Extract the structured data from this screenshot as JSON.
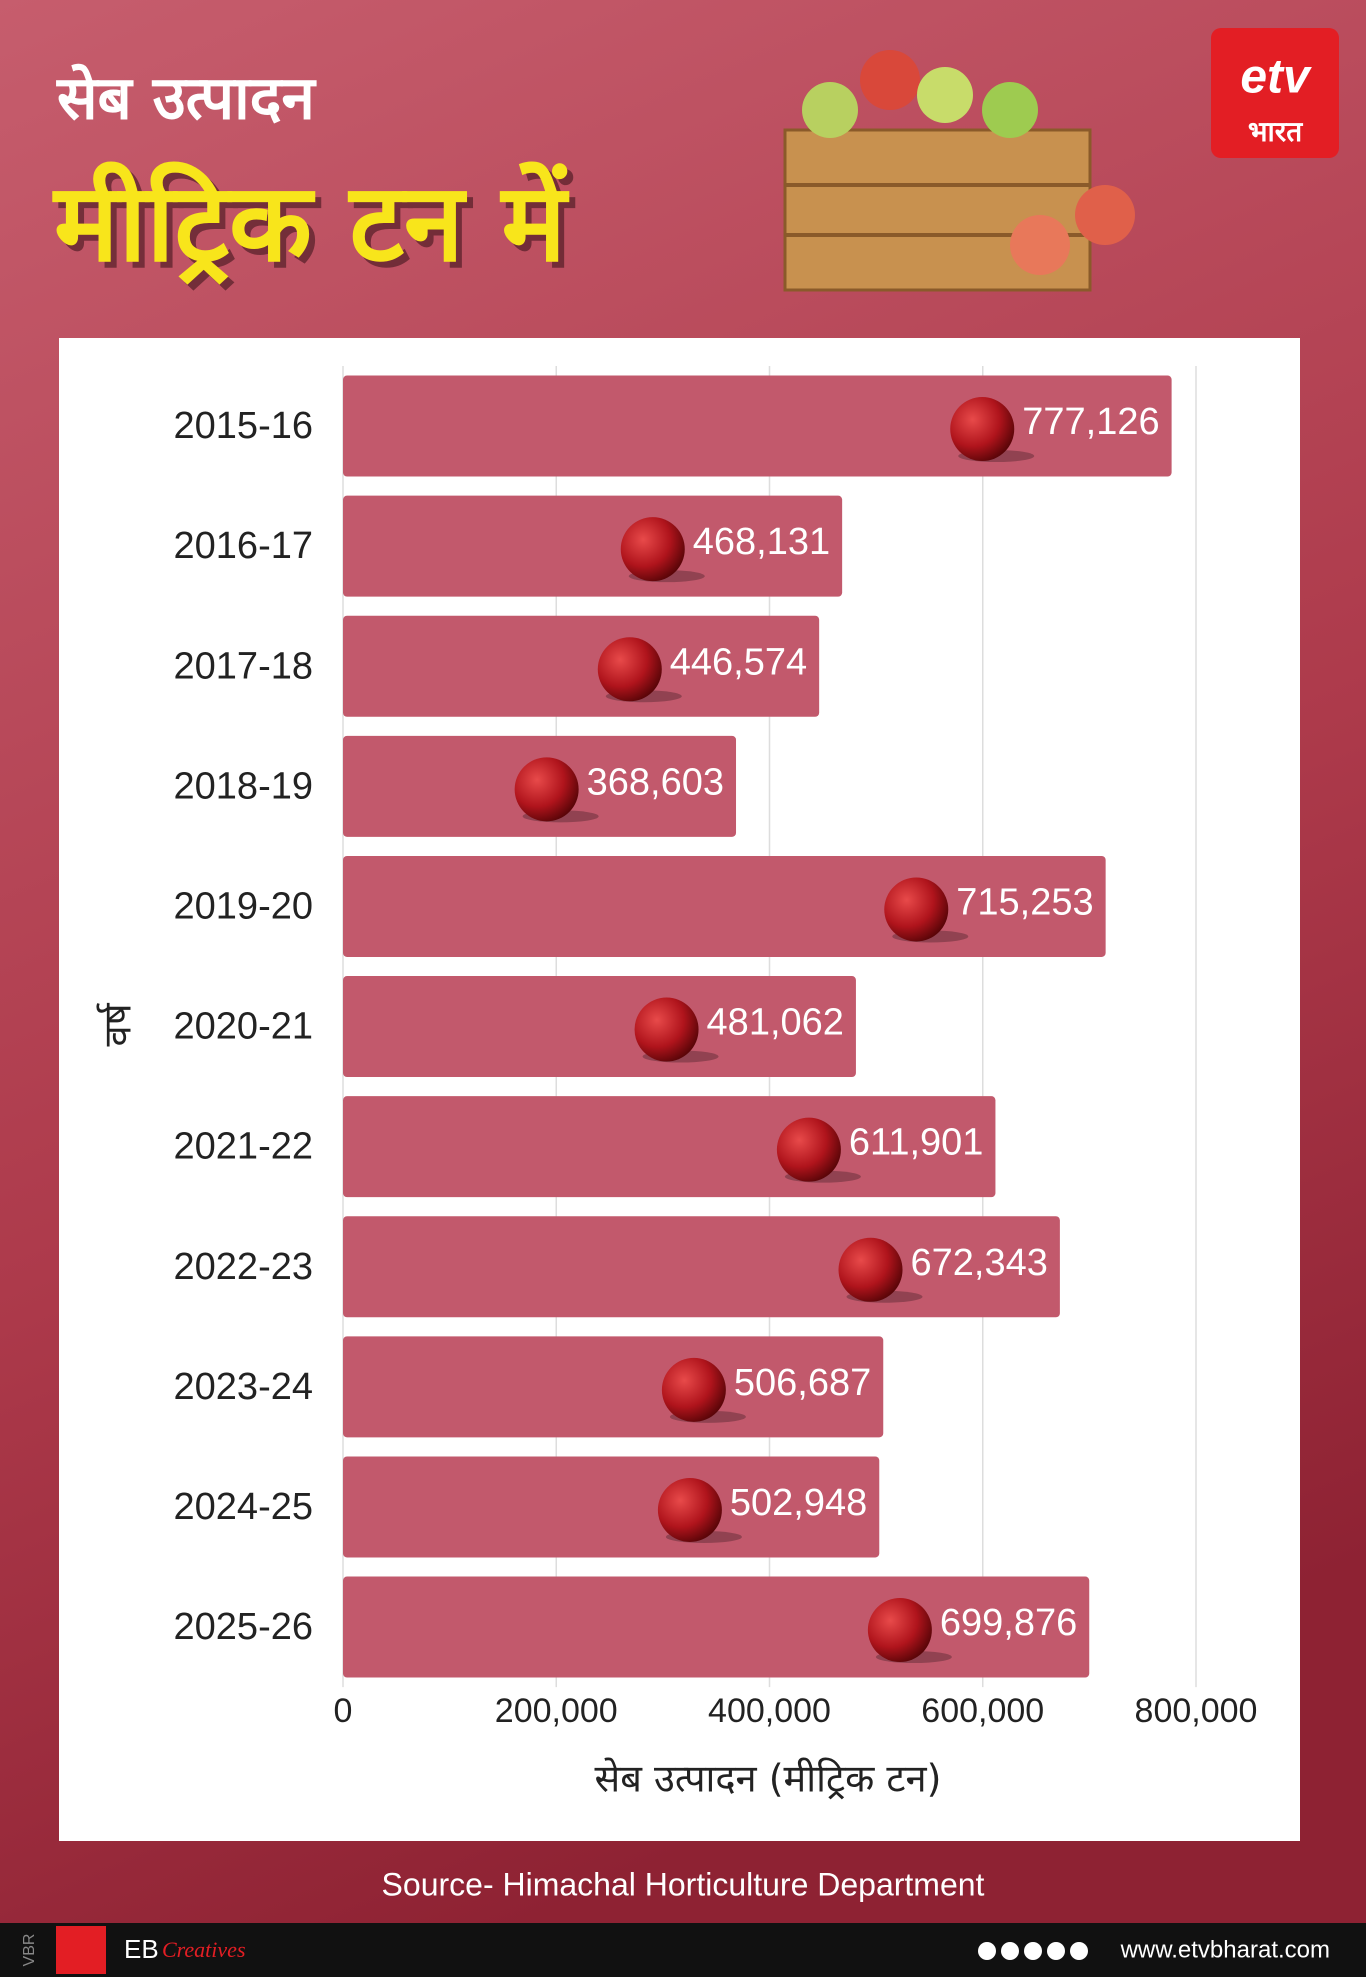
{
  "chart_data": {
    "type": "hbar",
    "title": "सेब उत्पादन",
    "subtitle": "मीट्रिक टन में",
    "x_label": "सेब उत्पादन (मीट्रिक टन)",
    "y_label": "वर्ष",
    "source": "Source- Himachal Horticulture Department",
    "categories": [
      "2015-16",
      "2016-17",
      "2017-18",
      "2018-19",
      "2019-20",
      "2020-21",
      "2021-22",
      "2022-23",
      "2023-24",
      "2024-25",
      "2025-26"
    ],
    "values": [
      777126,
      468131,
      446574,
      368603,
      715253,
      481062,
      611901,
      672343,
      506687,
      502948,
      699876
    ],
    "value_labels": [
      "777,126",
      "468,131",
      "446,574",
      "368,603",
      "715,253",
      "481,062",
      "611,901",
      "672,343",
      "506,687",
      "502,948",
      "699,876"
    ],
    "color": "#c2596c",
    "xlim": [
      0,
      800000
    ],
    "xticks": [
      0,
      {
        "value": 200000,
        "label": "200,000"
      },
      {
        "value": 400000,
        "label": "400,000"
      },
      {
        "value": 600000,
        "label": "600,000"
      },
      {
        "value": 800000,
        "label": "800,000"
      }
    ],
    "grid": true
  },
  "branding": {
    "logo_text": "भारत",
    "vbr": "VBR",
    "eb": "EB",
    "creatives": "Creatives",
    "website": "www.etvbharat.com"
  }
}
